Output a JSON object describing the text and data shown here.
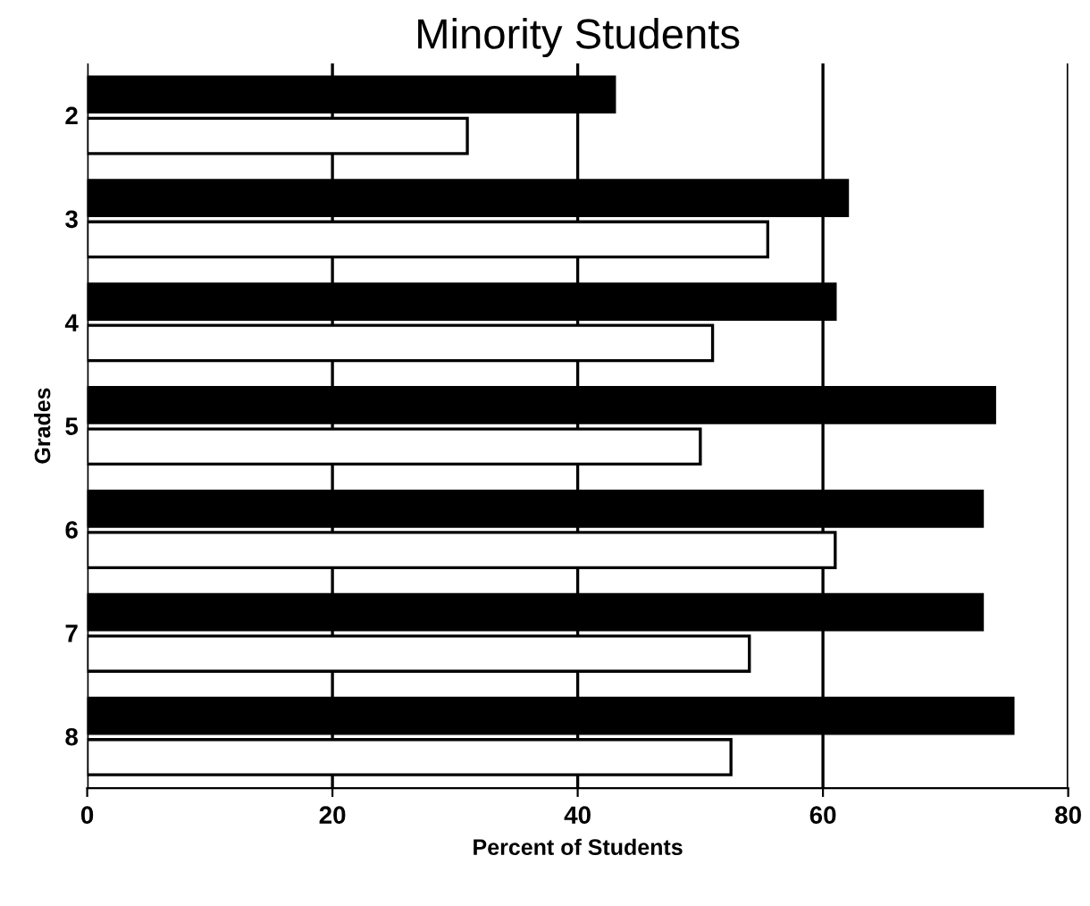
{
  "chart_data": {
    "type": "bar",
    "orientation": "horizontal",
    "title": "Minority Students",
    "xlabel": "Percent of Students",
    "ylabel": "Grades",
    "categories": [
      "2",
      "3",
      "4",
      "5",
      "6",
      "7",
      "8"
    ],
    "series": [
      {
        "color": "#000000",
        "values": [
          43,
          62,
          61,
          74,
          73,
          73,
          75.5
        ]
      },
      {
        "color": "#ffffff",
        "values": [
          31,
          55.5,
          51,
          50,
          61,
          54,
          52.5
        ]
      }
    ],
    "xlim": [
      0,
      80
    ],
    "xticks": [
      0,
      20,
      40,
      60,
      80
    ],
    "grid": "x"
  }
}
